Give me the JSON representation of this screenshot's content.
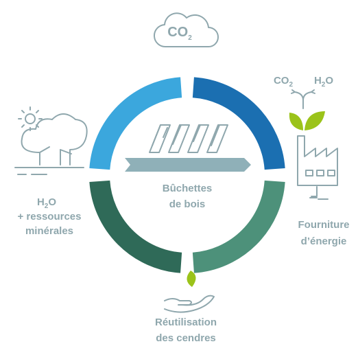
{
  "cloud_label": {
    "main": "CO",
    "sub": "2"
  },
  "outputs": [
    {
      "main": "CO",
      "sub": "2"
    },
    {
      "main": "H",
      "sub": "2",
      "tail": "O"
    }
  ],
  "center_label": [
    "Bûchettes",
    "de bois"
  ],
  "inputs_label": {
    "main": "H",
    "sub": "2",
    "tail": "O",
    "lines": [
      "+ ressources",
      "minérales"
    ]
  },
  "energy_label": [
    "Fourniture",
    "d’énergie"
  ],
  "ash_label": [
    "Réutilisation",
    "des cendres"
  ]
}
